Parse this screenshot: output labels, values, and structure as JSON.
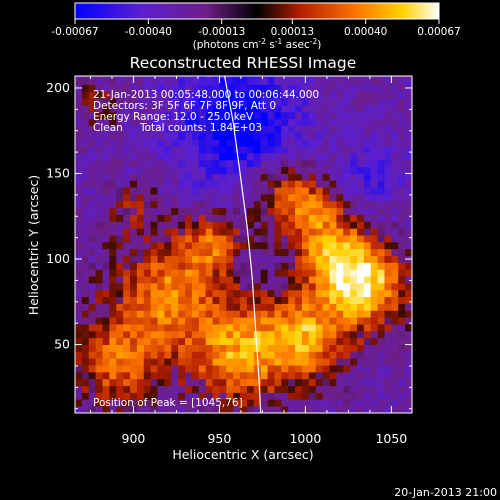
{
  "chart_data": {
    "type": "heatmap",
    "title": "Reconstructed RHESSI Image",
    "xlabel": "Heliocentric X (arcsec)",
    "ylabel": "Heliocentric Y (arcsec)",
    "xlim": [
      866,
      1062
    ],
    "ylim": [
      10,
      207
    ],
    "x_ticks": [
      900,
      950,
      1000,
      1050
    ],
    "y_ticks": [
      50,
      100,
      150,
      200
    ],
    "colorbar": {
      "range": [
        -0.00067,
        0.00067
      ],
      "tick_values": [
        -0.00067,
        -0.0004,
        -0.00013,
        0.00013,
        0.0004,
        0.00067
      ],
      "tick_labels": [
        "-0.00067",
        "-0.00040",
        "-0.00013",
        "0.00013",
        "0.00040",
        "0.00067"
      ],
      "units": "(photons cm",
      "units_sup1": "-2",
      "units_mid": " s",
      "units_sup2": "-1",
      "units_mid2": " asec",
      "units_sup3": "-2",
      "units_end": ")"
    },
    "annotations": {
      "time": "21-Jan-2013 00:05:48.000 to 00:06:44.000",
      "detectors": "Detectors: 3F 5F 6F 7F 8F 9F, Att 0",
      "energy": "Energy Range: 12.0 - 25.0 keV",
      "method": "Clean",
      "counts": "Total counts: 1.84E+03",
      "peak": "Position of Peak = [1045,76]"
    },
    "peak_position": [
      1045,
      76
    ],
    "limb_points": [
      [
        953,
        207
      ],
      [
        958,
        180
      ],
      [
        962,
        150
      ],
      [
        966,
        120
      ],
      [
        969,
        90
      ],
      [
        971,
        60
      ],
      [
        973,
        30
      ],
      [
        974,
        10
      ]
    ],
    "sources": [
      {
        "x": 1035,
        "y": 85,
        "sigma": 16,
        "amp": 1.0
      },
      {
        "x": 1000,
        "y": 55,
        "sigma": 18,
        "amp": 0.8
      },
      {
        "x": 1015,
        "y": 105,
        "sigma": 15,
        "amp": 0.7
      },
      {
        "x": 920,
        "y": 80,
        "sigma": 22,
        "amp": 0.7
      },
      {
        "x": 960,
        "y": 45,
        "sigma": 20,
        "amp": 0.75
      },
      {
        "x": 890,
        "y": 40,
        "sigma": 18,
        "amp": 0.6
      },
      {
        "x": 945,
        "y": 110,
        "sigma": 12,
        "amp": 0.55
      },
      {
        "x": 985,
        "y": 140,
        "sigma": 14,
        "amp": 0.5
      },
      {
        "x": 1005,
        "y": 130,
        "sigma": 12,
        "amp": 0.45
      },
      {
        "x": 900,
        "y": 130,
        "sigma": 10,
        "amp": 0.3
      },
      {
        "x": 880,
        "y": 190,
        "sigma": 10,
        "amp": 0.25
      }
    ],
    "negative_regions": [
      {
        "x": 960,
        "y": 180,
        "sigma": 25,
        "amp": -0.7
      },
      {
        "x": 1040,
        "y": 150,
        "sigma": 14,
        "amp": -0.3
      }
    ],
    "baseline": -0.15
  },
  "footer": {
    "timestamp": "20-Jan-2013 21:00"
  }
}
